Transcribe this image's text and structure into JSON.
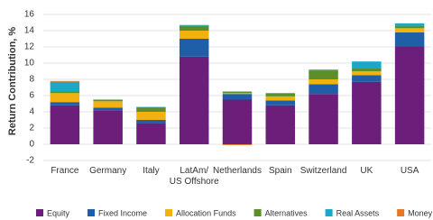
{
  "chart_data": {
    "type": "stacked_bar",
    "y_label": "Return Contribution, %",
    "categories": [
      "France",
      "Germany",
      "Italy",
      "LatAm/\nUS Offshore",
      "Netherlands",
      "Spain",
      "Switzerland",
      "UK",
      "USA"
    ],
    "series": [
      {
        "name": "Equity",
        "color": "#6b1f7a",
        "values": [
          4.8,
          4.2,
          2.6,
          10.8,
          5.5,
          4.8,
          6.2,
          7.7,
          12.1
        ]
      },
      {
        "name": "Fixed Income",
        "color": "#1e5fa8",
        "values": [
          0.4,
          0.3,
          0.4,
          2.2,
          0.7,
          0.6,
          1.2,
          0.8,
          1.7
        ]
      },
      {
        "name": "Allocation Funds",
        "color": "#f2b10f",
        "values": [
          1.1,
          0.8,
          1.0,
          1.0,
          0.1,
          0.5,
          0.6,
          0.5,
          0.5
        ]
      },
      {
        "name": "Alternatives",
        "color": "#5a8f29",
        "values": [
          0.2,
          0.2,
          0.5,
          0.6,
          0.2,
          0.4,
          1.1,
          0.4,
          0.3
        ]
      },
      {
        "name": "Real Assets",
        "color": "#19a9c6",
        "values": [
          1.2,
          0.0,
          0.1,
          0.1,
          0.0,
          0.0,
          0.1,
          0.8,
          0.3
        ]
      },
      {
        "name": "Money Market",
        "color": "#e87722",
        "values": [
          0.1,
          0.0,
          0.0,
          0.0,
          -0.1,
          0.0,
          0.0,
          0.0,
          0.0
        ]
      }
    ],
    "ylim": [
      -2,
      16
    ],
    "yticks": [
      -2,
      0,
      2,
      4,
      6,
      8,
      10,
      12,
      14,
      16
    ],
    "grid": true
  }
}
